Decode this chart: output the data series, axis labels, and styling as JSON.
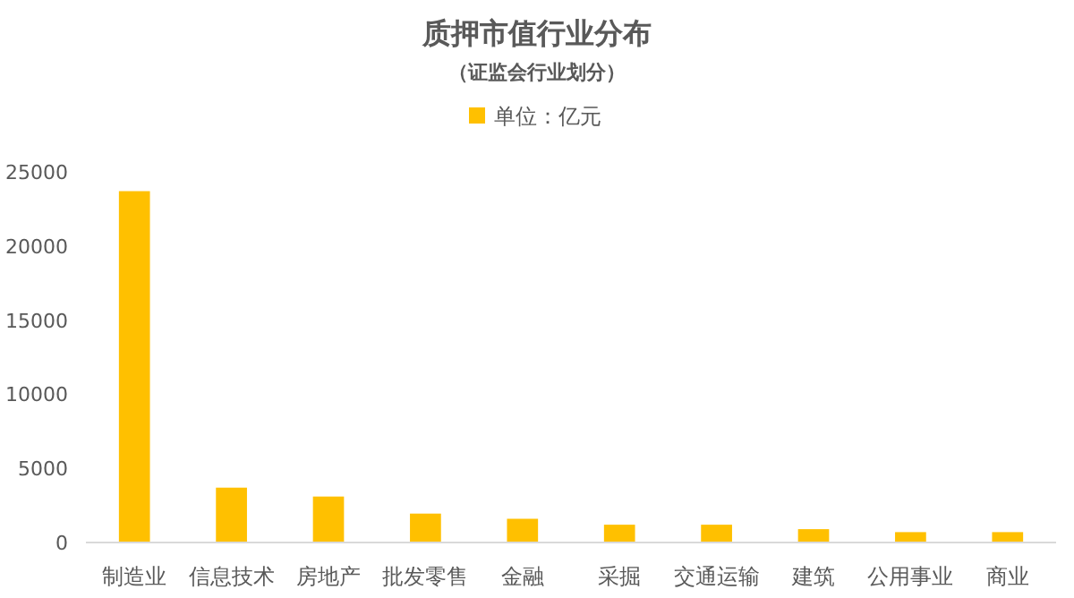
{
  "chart_data": {
    "type": "bar",
    "title": "质押市值行业分布",
    "subtitle": "（证监会行业划分）",
    "categories": [
      "制造业",
      "信息技术",
      "房地产",
      "批发零售",
      "金融",
      "采掘",
      "交通运输",
      "建筑",
      "公用事业",
      "商业"
    ],
    "series": [
      {
        "name": "单位：亿元",
        "color": "#ffc000",
        "values": [
          23700,
          3700,
          3100,
          1950,
          1600,
          1200,
          1200,
          900,
          700,
          700
        ]
      }
    ],
    "ylim": [
      0,
      25000
    ],
    "yticks": [
      0,
      5000,
      10000,
      15000,
      20000,
      25000
    ],
    "grid": false,
    "legend": "top"
  }
}
